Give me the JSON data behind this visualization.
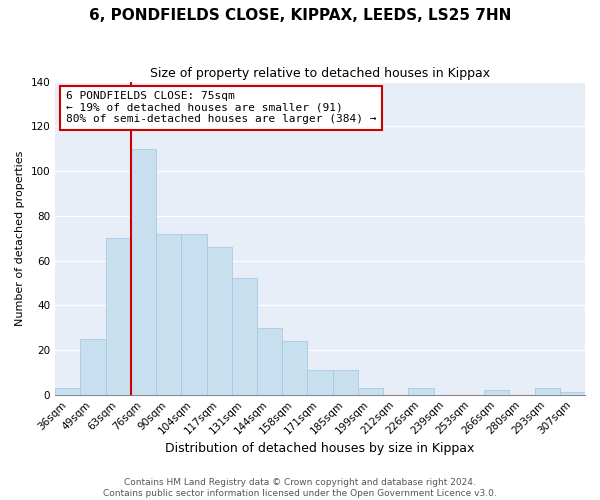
{
  "title": "6, PONDFIELDS CLOSE, KIPPAX, LEEDS, LS25 7HN",
  "subtitle": "Size of property relative to detached houses in Kippax",
  "xlabel": "Distribution of detached houses by size in Kippax",
  "ylabel": "Number of detached properties",
  "bar_color": "#c8dff0",
  "bar_edge_color": "#a0c4e0",
  "bins": [
    "36sqm",
    "49sqm",
    "63sqm",
    "76sqm",
    "90sqm",
    "104sqm",
    "117sqm",
    "131sqm",
    "144sqm",
    "158sqm",
    "171sqm",
    "185sqm",
    "199sqm",
    "212sqm",
    "226sqm",
    "239sqm",
    "253sqm",
    "266sqm",
    "280sqm",
    "293sqm",
    "307sqm"
  ],
  "values": [
    3,
    25,
    70,
    110,
    72,
    72,
    66,
    52,
    30,
    24,
    11,
    11,
    3,
    0,
    3,
    0,
    0,
    2,
    0,
    3,
    1
  ],
  "ylim": [
    0,
    140
  ],
  "yticks": [
    0,
    20,
    40,
    60,
    80,
    100,
    120,
    140
  ],
  "property_line_bin_index": 3,
  "annotation_title": "6 PONDFIELDS CLOSE: 75sqm",
  "annotation_line1": "← 19% of detached houses are smaller (91)",
  "annotation_line2": "80% of semi-detached houses are larger (384) →",
  "box_facecolor": "#ffffff",
  "box_edgecolor": "#cc0000",
  "property_line_color": "#cc0000",
  "footer1": "Contains HM Land Registry data © Crown copyright and database right 2024.",
  "footer2": "Contains public sector information licensed under the Open Government Licence v3.0.",
  "fig_facecolor": "#ffffff",
  "axes_facecolor": "#e8eef8",
  "grid_color": "#ffffff",
  "title_fontsize": 11,
  "subtitle_fontsize": 9,
  "xlabel_fontsize": 9,
  "ylabel_fontsize": 8,
  "tick_fontsize": 7.5,
  "annotation_fontsize": 8,
  "footer_fontsize": 6.5
}
